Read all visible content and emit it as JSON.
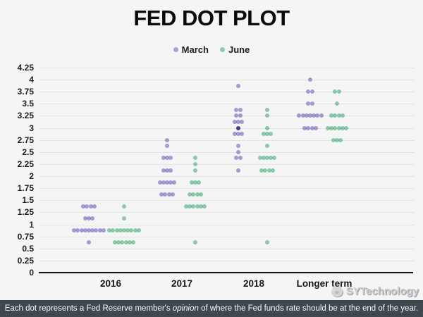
{
  "header": {
    "title": "FED DOT PLOT"
  },
  "legend": {
    "items": [
      {
        "label": "March",
        "color": "#aaa2d4"
      },
      {
        "label": "June",
        "color": "#87cfa9"
      }
    ]
  },
  "chart_data": {
    "type": "scatter",
    "title": "FED DOT PLOT",
    "xlabel": "",
    "ylabel": "",
    "ylim": [
      0,
      4.25
    ],
    "grid": true,
    "legend_position": "top",
    "yticks": [
      "4.25",
      "4",
      "3.75",
      "3.5",
      "3.25",
      "3",
      "2.75",
      "2.5",
      "2.25",
      "2",
      "1.75",
      "1.5",
      "1.25",
      "1",
      "0.75",
      "0.5",
      "0.25",
      "0"
    ],
    "categories": [
      "2016",
      "2017",
      "2018",
      "Longer term"
    ],
    "series": [
      {
        "name": "March",
        "color_rgba": "rgba(95,80,180,0.55)",
        "dark_color": "#473a8e",
        "clusters": [
          {
            "category": "2016",
            "rate": 1.375,
            "count": 4
          },
          {
            "category": "2016",
            "rate": 1.125,
            "count": 3
          },
          {
            "category": "2016",
            "rate": 0.875,
            "count": 9
          },
          {
            "category": "2016",
            "rate": 0.625,
            "count": 1
          },
          {
            "category": "2017",
            "rate": 2.75,
            "count": 1
          },
          {
            "category": "2017",
            "rate": 2.625,
            "count": 1
          },
          {
            "category": "2017",
            "rate": 2.375,
            "count": 3
          },
          {
            "category": "2017",
            "rate": 2.125,
            "count": 3
          },
          {
            "category": "2017",
            "rate": 1.875,
            "count": 5
          },
          {
            "category": "2017",
            "rate": 1.625,
            "count": 4
          },
          {
            "category": "2018",
            "rate": 3.875,
            "count": 1
          },
          {
            "category": "2018",
            "rate": 3.375,
            "count": 2
          },
          {
            "category": "2018",
            "rate": 3.25,
            "count": 2
          },
          {
            "category": "2018",
            "rate": 3.125,
            "count": 3
          },
          {
            "category": "2018",
            "rate": 3.0,
            "count": 1,
            "dark": true
          },
          {
            "category": "2018",
            "rate": 2.875,
            "count": 3
          },
          {
            "category": "2018",
            "rate": 2.625,
            "count": 1
          },
          {
            "category": "2018",
            "rate": 2.5,
            "count": 1
          },
          {
            "category": "2018",
            "rate": 2.375,
            "count": 2
          },
          {
            "category": "2018",
            "rate": 2.125,
            "count": 1
          },
          {
            "category": "Longer term",
            "rate": 4.0,
            "count": 1
          },
          {
            "category": "Longer term",
            "rate": 3.75,
            "count": 2
          },
          {
            "category": "Longer term",
            "rate": 3.5,
            "count": 2
          },
          {
            "category": "Longer term",
            "rate": 3.25,
            "count": 7
          },
          {
            "category": "Longer term",
            "rate": 3.0,
            "count": 4
          }
        ]
      },
      {
        "name": "June",
        "color_rgba": "rgba(30,160,95,0.5)",
        "dark_color": "#1d7a4c",
        "clusters": [
          {
            "category": "2016",
            "rate": 1.375,
            "count": 1
          },
          {
            "category": "2016",
            "rate": 1.125,
            "count": 1
          },
          {
            "category": "2016",
            "rate": 0.875,
            "count": 9
          },
          {
            "category": "2016",
            "rate": 0.625,
            "count": 6
          },
          {
            "category": "2017",
            "rate": 2.375,
            "count": 1
          },
          {
            "category": "2017",
            "rate": 2.25,
            "count": 1
          },
          {
            "category": "2017",
            "rate": 2.125,
            "count": 1
          },
          {
            "category": "2017",
            "rate": 1.875,
            "count": 3
          },
          {
            "category": "2017",
            "rate": 1.625,
            "count": 4
          },
          {
            "category": "2017",
            "rate": 1.375,
            "count": 6
          },
          {
            "category": "2017",
            "rate": 0.625,
            "count": 1
          },
          {
            "category": "2018",
            "rate": 3.375,
            "count": 1
          },
          {
            "category": "2018",
            "rate": 3.25,
            "count": 1
          },
          {
            "category": "2018",
            "rate": 3.0,
            "count": 1
          },
          {
            "category": "2018",
            "rate": 2.875,
            "count": 3
          },
          {
            "category": "2018",
            "rate": 2.625,
            "count": 1
          },
          {
            "category": "2018",
            "rate": 2.375,
            "count": 5
          },
          {
            "category": "2018",
            "rate": 2.125,
            "count": 4
          },
          {
            "category": "2018",
            "rate": 0.625,
            "count": 1
          },
          {
            "category": "Longer term",
            "rate": 3.75,
            "count": 2
          },
          {
            "category": "Longer term",
            "rate": 3.5,
            "count": 1
          },
          {
            "category": "Longer term",
            "rate": 3.25,
            "count": 4
          },
          {
            "category": "Longer term",
            "rate": 3.0,
            "count": 6
          },
          {
            "category": "Longer term",
            "rate": 2.75,
            "count": 3
          }
        ]
      }
    ]
  },
  "footer": {
    "caption_pre": "Each dot represents a Fed Reserve member's ",
    "caption_italic": "opinion",
    "caption_post": " of where the Fed funds rate should be at the end of the year.",
    "bar_color": "#40474f"
  },
  "watermark": {
    "text": "SYTechnology"
  }
}
